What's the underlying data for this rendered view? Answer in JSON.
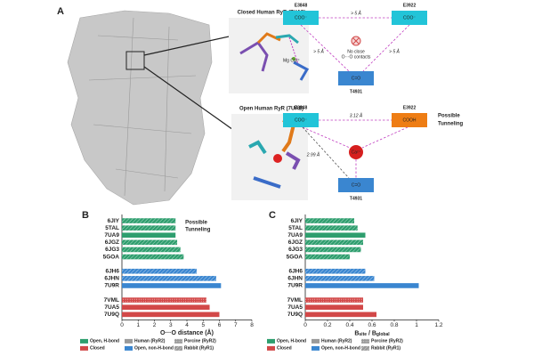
{
  "panel_a": {
    "label": "A",
    "closed_caption": "Closed Human RyR (7UA5)",
    "open_caption": "Open Human RyR (7UA8)",
    "ion_label": "Mg Ca²⁺",
    "closed_diagram": {
      "e3848": "E3848",
      "e3848_group": "COO⁻",
      "e3922": "E3922",
      "e3922_group": "COO⁻",
      "t4931": "T4931",
      "t4931_group": "C=O",
      "distance": "> 5 Å",
      "note": [
        "No close",
        "O···O contacts"
      ]
    },
    "open_diagram": {
      "e3848": "E3848",
      "e3848_group": "COO⁻",
      "e3922": "E3922",
      "e3922_group": "COOH",
      "t4931": "T4931",
      "t4931_group": "C=O",
      "ion": "Ca²⁺",
      "d_top": "3.12 Å",
      "d_left": "2.99 Å",
      "note": [
        "Possible",
        "Tunneling"
      ]
    }
  },
  "chart_data": [
    {
      "type": "bar",
      "panel_label": "B",
      "categories": [
        "6JIY",
        "5TAL",
        "7UA9",
        "6JGZ",
        "6JG3",
        "5GOA",
        null,
        "6JH6",
        "6JHN",
        "7U9R",
        null,
        "7VML",
        "7UA5",
        "7U9Q"
      ],
      "values": [
        3.3,
        3.3,
        3.3,
        3.4,
        3.6,
        3.8,
        null,
        4.6,
        5.8,
        6.1,
        null,
        5.2,
        5.4,
        6.0
      ],
      "colors": [
        "#2e9e6e",
        "#2e9e6e",
        "#2e9e6e",
        "#2e9e6e",
        "#2e9e6e",
        "#2e9e6e",
        null,
        "#3a86d0",
        "#3a86d0",
        "#3a86d0",
        null,
        "#d24848",
        "#d24848",
        "#d24848"
      ],
      "patterns": [
        "hatch",
        "hatch",
        "solid",
        "hatch",
        "hatch",
        "hatch",
        null,
        "hatch",
        "hatch",
        "solid",
        null,
        "dots",
        "solid",
        "solid"
      ],
      "xlabel": "O···O distance (Å)",
      "xlim": [
        0,
        8
      ],
      "xticks": [
        0,
        1,
        2,
        3,
        4,
        5,
        6,
        7,
        8
      ],
      "annotation": [
        "Possible",
        "Tunneling"
      ],
      "legend": [
        {
          "label": "Open, H-bond",
          "color": "#2e9e6e"
        },
        {
          "label": "Open, non-H-bond",
          "color": "#3a86d0"
        },
        {
          "label": "Closed",
          "color": "#d24848"
        },
        {
          "label": "Porcine (RyR2)",
          "pattern": "dots"
        },
        {
          "label": "Human (RyR2)",
          "pattern": "solid"
        },
        {
          "label": "Rabbit (RyR1)",
          "pattern": "hatch"
        }
      ]
    },
    {
      "type": "bar",
      "panel_label": "C",
      "categories": [
        "6JIY",
        "5TAL",
        "7UA9",
        "6JGZ",
        "6JG3",
        "5GOA",
        null,
        "6JH6",
        "6JHN",
        "7U9R",
        null,
        "7VML",
        "7UA5",
        "7U9Q"
      ],
      "values": [
        0.44,
        0.47,
        0.54,
        0.52,
        0.5,
        0.4,
        null,
        0.54,
        0.62,
        1.02,
        null,
        0.52,
        0.52,
        0.64
      ],
      "colors": [
        "#2e9e6e",
        "#2e9e6e",
        "#2e9e6e",
        "#2e9e6e",
        "#2e9e6e",
        "#2e9e6e",
        null,
        "#3a86d0",
        "#3a86d0",
        "#3a86d0",
        null,
        "#d24848",
        "#d24848",
        "#d24848"
      ],
      "patterns": [
        "hatch",
        "hatch",
        "solid",
        "hatch",
        "hatch",
        "hatch",
        null,
        "hatch",
        "hatch",
        "solid",
        null,
        "dots",
        "solid",
        "solid"
      ],
      "xlabel_parts": [
        "B",
        "site",
        " / B",
        "global"
      ],
      "xlim": [
        0,
        1.2
      ],
      "xticks": [
        0,
        0.2,
        0.4,
        0.6,
        0.8,
        1,
        1.2
      ],
      "legend": [
        {
          "label": "Open, H-bond",
          "color": "#2e9e6e"
        },
        {
          "label": "Open, non-H-bond",
          "color": "#3a86d0"
        },
        {
          "label": "Closed",
          "color": "#d24848"
        },
        {
          "label": "Porcine (RyR2)",
          "pattern": "dots"
        },
        {
          "label": "Human (RyR2)",
          "pattern": "solid"
        },
        {
          "label": "Rabbit (RyR1)",
          "pattern": "hatch"
        }
      ]
    }
  ]
}
